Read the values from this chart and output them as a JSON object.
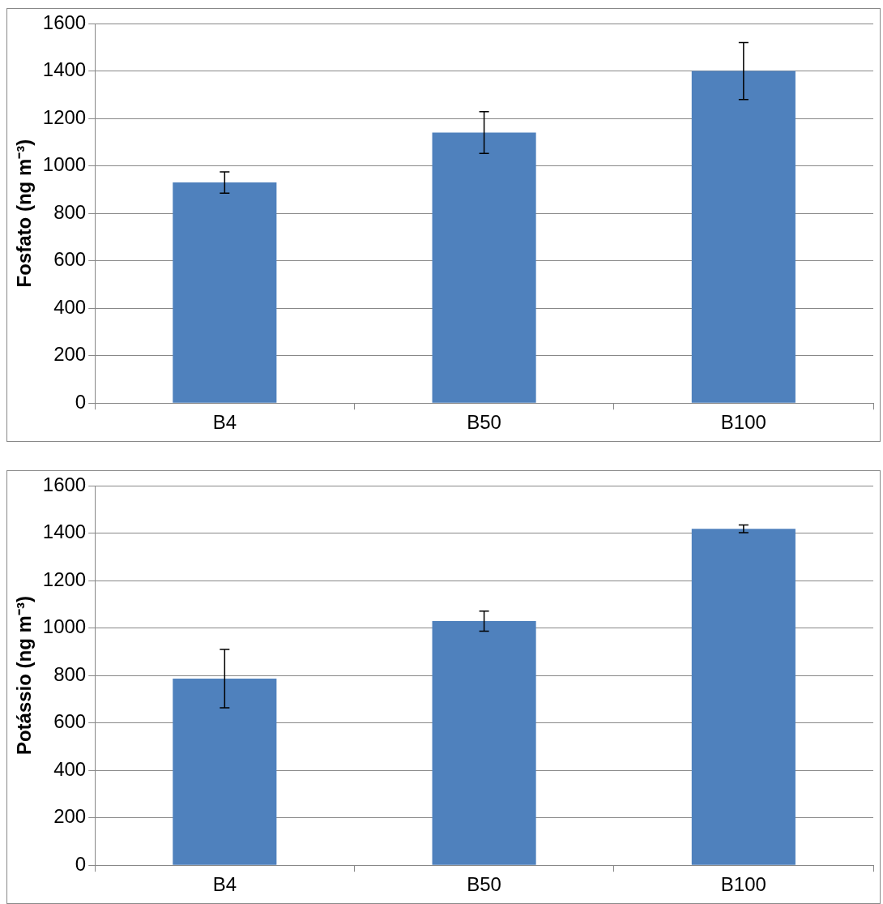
{
  "chart_data": [
    {
      "type": "bar",
      "ylabel": "Fosfato (ng m⁻³)",
      "categories": [
        "B4",
        "B50",
        "B100"
      ],
      "values": [
        930,
        1140,
        1400
      ],
      "errors": [
        45,
        88,
        120
      ],
      "color": "#4f81bd",
      "ylim": [
        0,
        1600
      ],
      "yticks": [
        0,
        200,
        400,
        600,
        800,
        1000,
        1200,
        1400,
        1600
      ],
      "grid": "y",
      "legend": false
    },
    {
      "type": "bar",
      "ylabel": "Potássio (ng m⁻³)",
      "categories": [
        "B4",
        "B50",
        "B100"
      ],
      "values": [
        787,
        1029,
        1418
      ],
      "errors": [
        123,
        42,
        16
      ],
      "color": "#4f81bd",
      "ylim": [
        0,
        1600
      ],
      "yticks": [
        0,
        200,
        400,
        600,
        800,
        1000,
        1200,
        1400,
        1600
      ],
      "grid": "y",
      "legend": false
    }
  ]
}
